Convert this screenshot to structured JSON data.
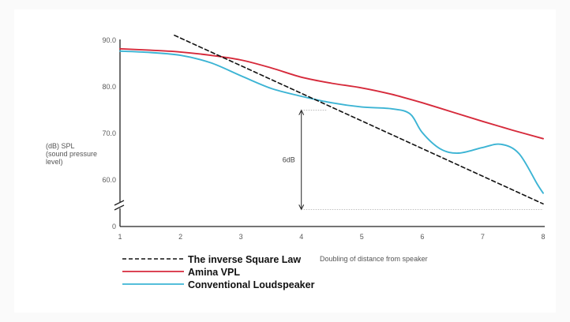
{
  "chart_data": {
    "type": "line",
    "ylabel": [
      "(dB) SPL",
      "(sound pressure",
      "level)"
    ],
    "xlabel": "Doubling of distance from speaker",
    "x_ticks": [
      "1",
      "2",
      "3",
      "4",
      "5",
      "6",
      "7",
      "8"
    ],
    "y_ticks": [
      "90.0",
      "80.0",
      "70.0",
      "60.0",
      "0"
    ],
    "xlim": [
      1,
      8
    ],
    "ylim": [
      52.5,
      90
    ],
    "axis_break": true,
    "grid": false,
    "legend_position": "bottom-left",
    "annotation": {
      "label": "6dB",
      "x": 4.0,
      "y_top": 74.8,
      "y_bottom": 53.5,
      "right_x": 8.0
    },
    "series": [
      {
        "name": "The inverse Square Law",
        "color": "#111111",
        "style": "dashed",
        "x": [
          1.9,
          8.0
        ],
        "y": [
          90.9,
          54.7
        ]
      },
      {
        "name": "Amina VPL",
        "color": "#d62a3b",
        "style": "solid",
        "x": [
          1.0,
          1.5,
          2.0,
          2.5,
          3.0,
          3.5,
          4.0,
          4.5,
          5.0,
          5.5,
          6.0,
          6.5,
          7.0,
          7.5,
          8.0
        ],
        "y": [
          88.0,
          87.7,
          87.3,
          86.6,
          85.6,
          83.9,
          81.9,
          80.6,
          79.6,
          78.2,
          76.4,
          74.4,
          72.4,
          70.5,
          68.7
        ]
      },
      {
        "name": "Conventional Loudspeaker",
        "color": "#3cb4d4",
        "style": "solid",
        "x": [
          1.0,
          1.5,
          2.0,
          2.5,
          3.0,
          3.5,
          4.0,
          4.5,
          5.0,
          5.5,
          5.8,
          6.0,
          6.3,
          6.6,
          7.0,
          7.3,
          7.6,
          7.9,
          8.0
        ],
        "y": [
          87.5,
          87.2,
          86.6,
          85.0,
          82.2,
          79.5,
          77.8,
          76.4,
          75.5,
          75.1,
          74.0,
          70.0,
          66.5,
          65.6,
          66.8,
          67.5,
          65.5,
          59.0,
          57.0
        ]
      }
    ]
  }
}
